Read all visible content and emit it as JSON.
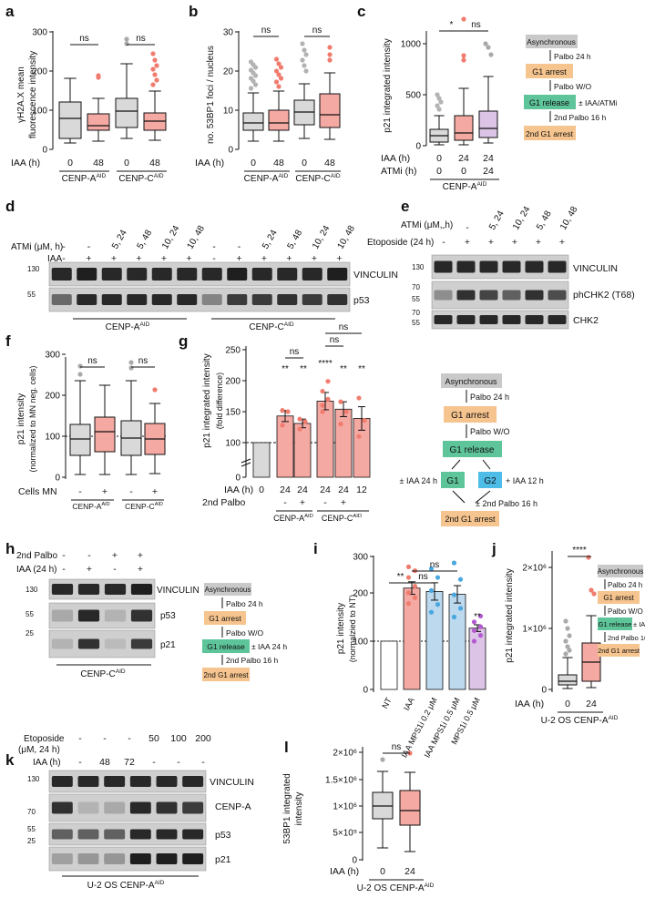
{
  "figure": {
    "panels": {
      "a": {
        "label": "a",
        "ylabel": [
          "γH2A.X mean",
          "fluorescence intensity"
        ],
        "yticks": [
          "0",
          "100",
          "200",
          "300"
        ],
        "xrow_label": "IAA (h)",
        "xticks": [
          "0",
          "48",
          "0",
          "48"
        ],
        "groups": [
          "CENP-A",
          "CENP-C"
        ],
        "superscript": "AID",
        "significance": [
          "ns",
          "ns"
        ]
      },
      "b": {
        "label": "b",
        "ylabel": [
          "no. 53BP1 foci / nucleus"
        ],
        "yticks": [
          "0",
          "10",
          "20",
          "30"
        ],
        "xrow_label": "IAA (h)",
        "xticks": [
          "0",
          "48",
          "0",
          "48"
        ],
        "groups": [
          "CENP-A",
          "CENP-C"
        ],
        "superscript": "AID",
        "significance": [
          "ns",
          "ns"
        ]
      },
      "c": {
        "label": "c",
        "ylabel": [
          "p21 integrated intensity"
        ],
        "yticks": [
          "0",
          "500",
          "1000"
        ],
        "xrow_labels": [
          "IAA (h)",
          "ATMi (h)"
        ],
        "iaa_values": [
          "0",
          "24",
          "24"
        ],
        "atmi_values": [
          "0",
          "0",
          "24"
        ],
        "group": "CENP-A",
        "superscript": "AID",
        "significance": [
          "*",
          "ns"
        ],
        "scheme": {
          "title": "Asynchronous",
          "steps": [
            "Palbo 24 h",
            "Palbo W/O",
            "2nd Palbo 16 h"
          ],
          "boxes": [
            "G1 arrest",
            "G1 release",
            "2nd G1 arrest"
          ],
          "release_note": "± IAA/ATMi"
        }
      },
      "d": {
        "label": "d",
        "row1_label": "ATMi (μM, h)",
        "row1_values": [
          "-",
          "-",
          "5, 24",
          "5, 48",
          "10, 24",
          "10, 48",
          "-",
          "-",
          "5, 24",
          "5, 48",
          "10, 24",
          "10, 48"
        ],
        "row2_label": "IAA",
        "row2_values": [
          "-",
          "+",
          "+",
          "+",
          "+",
          "+",
          "-",
          "+",
          "+",
          "+",
          "+",
          "+"
        ],
        "mw": [
          "130",
          "55"
        ],
        "bands": [
          "VINCULIN",
          "p53"
        ],
        "groups": [
          "CENP-A",
          "CENP-C"
        ],
        "superscript": "AID"
      },
      "e": {
        "label": "e",
        "row1_label": "ATMi (μM, h)",
        "row1_values": [
          "-",
          "-",
          "5, 24",
          "10, 24",
          "5, 48",
          "10, 48"
        ],
        "row2_label": "Etoposide (24 h)",
        "row2_values": [
          "-",
          "+",
          "+",
          "+",
          "+",
          "+"
        ],
        "mw": [
          "130",
          "70",
          "55",
          "70",
          "55"
        ],
        "bands": [
          "VINCULIN",
          "phCHK2 (T68)",
          "CHK2"
        ]
      },
      "f": {
        "label": "f",
        "ylabel": [
          "p21 intensity",
          "(normalized to MN neg. cells)"
        ],
        "yticks": [
          "0",
          "100",
          "200",
          "300"
        ],
        "xrow_label": "Cells MN",
        "xticks": [
          "-",
          "+",
          "-",
          "+"
        ],
        "groups": [
          "CENP-A",
          "CENP-C"
        ],
        "superscript": "AID",
        "significance": [
          "ns",
          "ns"
        ]
      },
      "g": {
        "label": "g",
        "ylabel": [
          "p21 integrated intensity",
          "(fold difference)"
        ],
        "yticks": [
          "0",
          "100",
          "150",
          "200",
          "250"
        ],
        "xrow_labels": [
          "IAA (h)",
          "2nd Palbo"
        ],
        "iaa_values": [
          "0",
          "24",
          "24",
          "24",
          "24",
          "12"
        ],
        "palbo_values": [
          "",
          "-",
          "+",
          "-",
          "+",
          ""
        ],
        "groups": [
          "CENP-A",
          "CENP-C"
        ],
        "superscript": "AID",
        "significance": [
          "**",
          "**",
          "****",
          "**",
          "**"
        ],
        "ns_labels": [
          "ns",
          "ns",
          "ns"
        ],
        "scheme": {
          "title": "Asynchronous",
          "steps": [
            "Palbo 24 h",
            "Palbo W/O",
            "± 2nd Palbo 16 h"
          ],
          "boxes": [
            "G1 arrest",
            "G1 release",
            "G1",
            "G2",
            "2nd G1 arrest"
          ],
          "left_note": "± IAA 24 h",
          "right_note": "+ IAA 12 h"
        }
      },
      "h": {
        "label": "h",
        "row1_label": "2nd Palbo",
        "row1_values": [
          "-",
          "-",
          "+",
          "+"
        ],
        "row2_label": "IAA (24 h)",
        "row2_values": [
          "-",
          "+",
          "-",
          "+"
        ],
        "mw": [
          "130",
          "55",
          "25"
        ],
        "bands": [
          "VINCULIN",
          "p53",
          "p21"
        ],
        "group": "CENP-C",
        "superscript": "AID",
        "scheme": {
          "title": "Asynchronous",
          "steps": [
            "Palbo 24 h",
            "Palbo W/O",
            "2nd Palbo 16 h"
          ],
          "boxes": [
            "G1 arrest",
            "G1 release",
            "2nd G1 arrest"
          ],
          "release_note": "± IAA 24 h"
        }
      },
      "i": {
        "label": "i",
        "ylabel": [
          "p21 intensity",
          "(normalzied to NT)"
        ],
        "yticks": [
          "0",
          "100",
          "200",
          "300"
        ],
        "xticks": [
          "NT",
          "IAA",
          "IAA MPS1i 0.2 μM",
          "IAA MPS1i 0.5 μM",
          "MPS1i 0.5 μM"
        ],
        "significance": [
          "**",
          "ns",
          "ns",
          "**"
        ]
      },
      "j": {
        "label": "j",
        "ylabel": [
          "p21 integrated intensity"
        ],
        "yticks": [
          "0",
          "1×10⁶",
          "2×10⁶"
        ],
        "xrow_label": "IAA (h)",
        "xticks": [
          "0",
          "24"
        ],
        "group": "U-2 OS CENP-A",
        "superscript": "AID",
        "significance": [
          "****"
        ],
        "scheme": {
          "title": "Asynchronous",
          "steps": [
            "Palbo 24 h",
            "Palbo W/O",
            "2nd Palbo 16 h"
          ],
          "boxes": [
            "G1 arrest",
            "G1 release",
            "2nd G1 arrest"
          ],
          "release_note": "± IAA"
        }
      },
      "k": {
        "label": "k",
        "row1_label": [
          "Etoposide",
          "(μM, 24 h)"
        ],
        "row1_values": [
          "-",
          "-",
          "-",
          "50",
          "100",
          "200"
        ],
        "row2_label": "IAA (h)",
        "row2_values": [
          "-",
          "48",
          "72",
          "-",
          "-",
          "-"
        ],
        "mw": [
          "130",
          "70",
          "55",
          "25"
        ],
        "bands": [
          "VINCULIN",
          "CENP-A",
          "p53",
          "p21"
        ],
        "group": "U-2 OS CENP-A",
        "superscript": "AID"
      },
      "l": {
        "label": "l",
        "ylabel": [
          "53BP1 integrated",
          "intensity"
        ],
        "yticks": [
          "0",
          "5×10⁵",
          "1×10⁶",
          "1.5×10⁶",
          "2×10⁶"
        ],
        "xrow_label": "IAA (h)",
        "xticks": [
          "0",
          "24"
        ],
        "group": "U-2 OS CENP-A",
        "superscript": "AID",
        "significance": [
          "ns"
        ]
      }
    }
  },
  "colors": {
    "control_box": "#d9d9d9",
    "treated_box": "#f5a9a3",
    "treated_dot": "#f07c6e",
    "mps1_box": "#bcd9ee",
    "mps1_dot": "#49a7df",
    "mps1only_box": "#dcc4e6",
    "mps1only_dot": "#b45ad1",
    "scheme_title": "#c9c9c9",
    "scheme_arrest": "#f6c48e",
    "scheme_release": "#5ec49a",
    "scheme_g2": "#4dbce6",
    "blot_bg": "#cfcfcf",
    "blot_band": "#151515"
  }
}
